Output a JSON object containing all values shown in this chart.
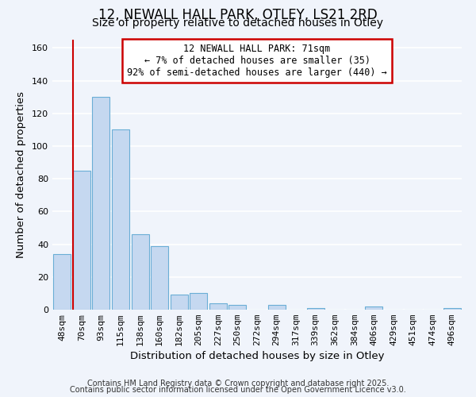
{
  "title": "12, NEWALL HALL PARK, OTLEY, LS21 2RD",
  "subtitle": "Size of property relative to detached houses in Otley",
  "xlabel": "Distribution of detached houses by size in Otley",
  "ylabel": "Number of detached properties",
  "bar_color": "#c5d8f0",
  "bar_edge_color": "#6aaed6",
  "categories": [
    "48sqm",
    "70sqm",
    "93sqm",
    "115sqm",
    "138sqm",
    "160sqm",
    "182sqm",
    "205sqm",
    "227sqm",
    "250sqm",
    "272sqm",
    "294sqm",
    "317sqm",
    "339sqm",
    "362sqm",
    "384sqm",
    "406sqm",
    "429sqm",
    "451sqm",
    "474sqm",
    "496sqm"
  ],
  "values": [
    34,
    85,
    130,
    110,
    46,
    39,
    9,
    10,
    4,
    3,
    0,
    3,
    0,
    1,
    0,
    0,
    2,
    0,
    0,
    0,
    1
  ],
  "ylim": [
    0,
    165
  ],
  "yticks": [
    0,
    20,
    40,
    60,
    80,
    100,
    120,
    140,
    160
  ],
  "red_line_index": 1,
  "annotation_text": "12 NEWALL HALL PARK: 71sqm\n← 7% of detached houses are smaller (35)\n92% of semi-detached houses are larger (440) →",
  "annotation_box_color": "#ffffff",
  "annotation_border_color": "#cc0000",
  "footnote1": "Contains HM Land Registry data © Crown copyright and database right 2025.",
  "footnote2": "Contains public sector information licensed under the Open Government Licence v3.0.",
  "background_color": "#f0f4fb",
  "grid_color": "#ffffff",
  "title_fontsize": 12,
  "subtitle_fontsize": 10,
  "tick_fontsize": 8,
  "label_fontsize": 9.5
}
